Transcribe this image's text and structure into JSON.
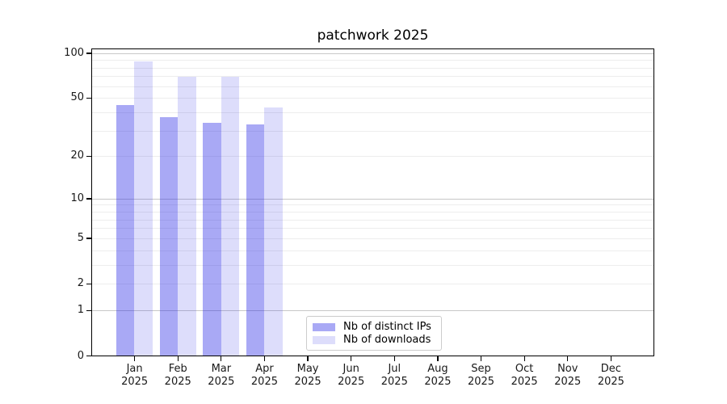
{
  "title": "patchwork 2025",
  "chart_data": {
    "type": "bar",
    "title": "patchwork 2025",
    "x_categories": [
      "Jan",
      "Feb",
      "Mar",
      "Apr",
      "May",
      "Jun",
      "Jul",
      "Aug",
      "Sep",
      "Oct",
      "Nov",
      "Dec"
    ],
    "x_year": "2025",
    "series": [
      {
        "name": "Nb of distinct IPs",
        "color": "rgba(30,30,230,0.38)",
        "values": [
          45,
          37,
          34,
          33,
          null,
          null,
          null,
          null,
          null,
          null,
          null,
          null
        ]
      },
      {
        "name": "Nb of downloads",
        "color": "rgba(30,30,230,0.15)",
        "values": [
          88,
          69,
          69,
          43,
          null,
          null,
          null,
          null,
          null,
          null,
          null,
          null
        ]
      }
    ],
    "yscale": "log1p",
    "ylim": [
      0,
      107
    ],
    "yticks": [
      0,
      1,
      2,
      5,
      10,
      20,
      50,
      100
    ],
    "major_gridlines": [
      1,
      10,
      100
    ],
    "minor_gridlines": [
      2,
      3,
      4,
      5,
      6,
      7,
      8,
      9,
      20,
      30,
      40,
      50,
      60,
      70,
      80,
      90
    ],
    "grid": true,
    "legend_position": "inside-bottom-center-left"
  },
  "legend": {
    "items": [
      {
        "label": "Nb of distinct IPs",
        "color": "rgba(30,30,230,0.38)"
      },
      {
        "label": "Nb of downloads",
        "color": "rgba(30,30,230,0.15)"
      }
    ]
  },
  "colors": {
    "major_grid": "#c8c8c8",
    "minor_grid": "#ededed",
    "spine": "#000000",
    "tick_label": "#191919",
    "background": "#ffffff"
  }
}
